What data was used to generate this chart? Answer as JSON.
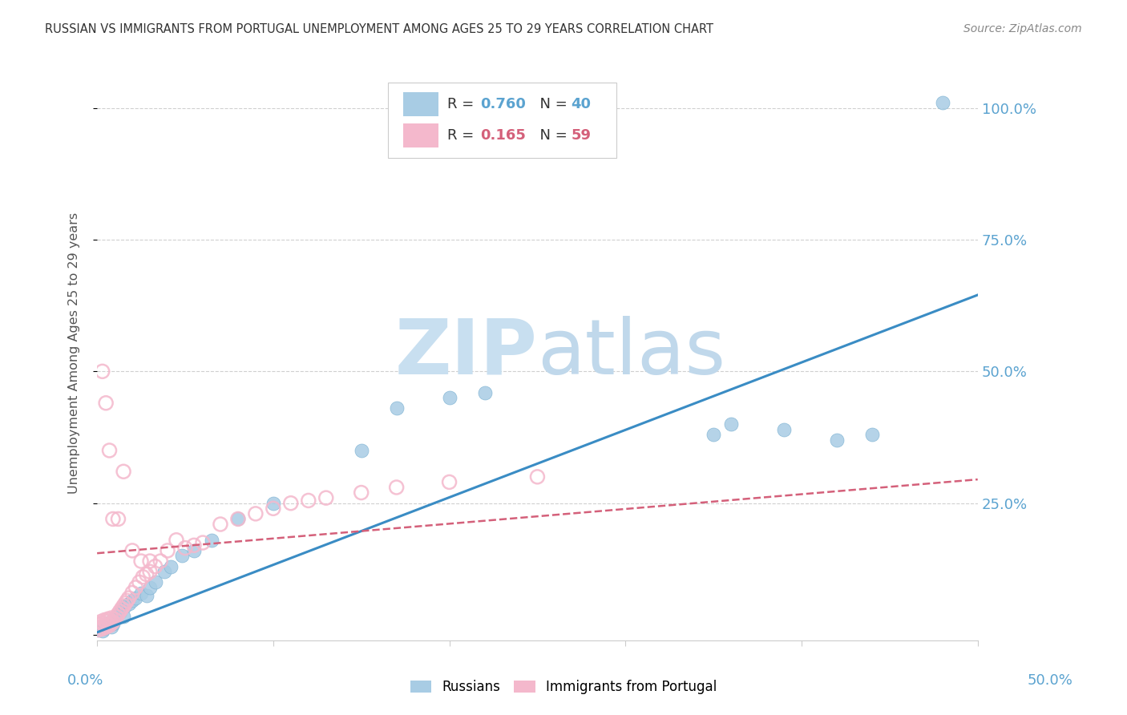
{
  "title": "RUSSIAN VS IMMIGRANTS FROM PORTUGAL UNEMPLOYMENT AMONG AGES 25 TO 29 YEARS CORRELATION CHART",
  "source": "Source: ZipAtlas.com",
  "ylabel": "Unemployment Among Ages 25 to 29 years",
  "xlim": [
    0.0,
    0.5
  ],
  "ylim": [
    -0.01,
    1.08
  ],
  "ytick_positions": [
    0.0,
    0.25,
    0.5,
    0.75,
    1.0
  ],
  "ytick_labels": [
    "",
    "25.0%",
    "50.0%",
    "75.0%",
    "100.0%"
  ],
  "russian_R": 0.76,
  "russian_N": 40,
  "portugal_R": 0.165,
  "portugal_N": 59,
  "blue_color": "#a8cce4",
  "blue_edge": "#7fb3d3",
  "pink_color": "#f4b8cc",
  "pink_edge": "#e8829e",
  "blue_line_color": "#3a8cc4",
  "pink_line_color": "#d4607a",
  "axis_label_color": "#5ba3d0",
  "grid_color": "#d0d0d0",
  "title_color": "#333333",
  "source_color": "#888888",
  "watermark_zip_color": "#c8dff0",
  "watermark_atlas_color": "#c0d8eb",
  "background": "#ffffff",
  "blue_line_x0": 0.0,
  "blue_line_y0": 0.005,
  "blue_line_x1": 0.5,
  "blue_line_y1": 0.645,
  "pink_line_x0": 0.0,
  "pink_line_y0": 0.155,
  "pink_line_x1": 0.5,
  "pink_line_y1": 0.295,
  "russian_x": [
    0.001,
    0.002,
    0.003,
    0.004,
    0.005,
    0.006,
    0.007,
    0.008,
    0.009,
    0.01,
    0.011,
    0.012,
    0.013,
    0.014,
    0.015,
    0.016,
    0.018,
    0.02,
    0.022,
    0.025,
    0.028,
    0.03,
    0.033,
    0.038,
    0.042,
    0.048,
    0.055,
    0.065,
    0.08,
    0.1,
    0.15,
    0.17,
    0.2,
    0.22,
    0.35,
    0.36,
    0.39,
    0.42,
    0.44,
    0.48
  ],
  "russian_y": [
    0.01,
    0.015,
    0.008,
    0.012,
    0.018,
    0.02,
    0.025,
    0.015,
    0.022,
    0.03,
    0.035,
    0.04,
    0.045,
    0.05,
    0.035,
    0.055,
    0.06,
    0.065,
    0.07,
    0.08,
    0.075,
    0.09,
    0.1,
    0.12,
    0.13,
    0.15,
    0.16,
    0.18,
    0.22,
    0.25,
    0.35,
    0.43,
    0.45,
    0.46,
    0.38,
    0.4,
    0.39,
    0.37,
    0.38,
    1.01
  ],
  "portugal_x": [
    0.001,
    0.001,
    0.002,
    0.002,
    0.003,
    0.003,
    0.004,
    0.004,
    0.005,
    0.005,
    0.006,
    0.006,
    0.007,
    0.007,
    0.008,
    0.008,
    0.009,
    0.01,
    0.011,
    0.012,
    0.013,
    0.014,
    0.015,
    0.016,
    0.017,
    0.018,
    0.02,
    0.022,
    0.024,
    0.026,
    0.028,
    0.03,
    0.033,
    0.036,
    0.04,
    0.045,
    0.05,
    0.055,
    0.06,
    0.07,
    0.08,
    0.09,
    0.1,
    0.11,
    0.12,
    0.13,
    0.15,
    0.17,
    0.2,
    0.25,
    0.003,
    0.005,
    0.007,
    0.009,
    0.012,
    0.015,
    0.02,
    0.025,
    0.03
  ],
  "portugal_y": [
    0.01,
    0.02,
    0.015,
    0.025,
    0.012,
    0.022,
    0.018,
    0.028,
    0.015,
    0.025,
    0.02,
    0.03,
    0.018,
    0.028,
    0.022,
    0.032,
    0.025,
    0.03,
    0.035,
    0.04,
    0.045,
    0.05,
    0.055,
    0.06,
    0.065,
    0.07,
    0.08,
    0.09,
    0.1,
    0.11,
    0.115,
    0.12,
    0.13,
    0.14,
    0.16,
    0.18,
    0.165,
    0.17,
    0.175,
    0.21,
    0.22,
    0.23,
    0.24,
    0.25,
    0.255,
    0.26,
    0.27,
    0.28,
    0.29,
    0.3,
    0.5,
    0.44,
    0.35,
    0.22,
    0.22,
    0.31,
    0.16,
    0.14,
    0.14
  ]
}
